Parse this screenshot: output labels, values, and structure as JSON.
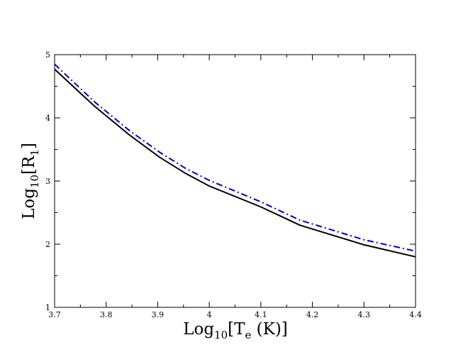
{
  "chart_data": {
    "type": "line",
    "xlabel": {
      "main": "Log",
      "sub1": "10",
      "mid": "[T",
      "sub2": "e",
      "tail": " (K)]"
    },
    "ylabel": {
      "main": "Log",
      "sub1": "10",
      "mid": "[R",
      "sub2": "1",
      "tail": "]"
    },
    "xlim": [
      3.7,
      4.4
    ],
    "ylim": [
      1,
      5
    ],
    "xticks": [
      3.7,
      3.8,
      3.9,
      4.0,
      4.1,
      4.2,
      4.3,
      4.4
    ],
    "xtick_labels": [
      "3.7",
      "3.8",
      "3.9",
      "4",
      "4.1",
      "4.2",
      "4.3",
      "4.4"
    ],
    "yticks": [
      1,
      2,
      3,
      4,
      5
    ],
    "ytick_labels": [
      "1",
      "2",
      "3",
      "4",
      "5"
    ],
    "grid": false,
    "series": [
      {
        "color": "#000000",
        "style": "solid",
        "x": [
          3.7,
          3.778,
          3.845,
          3.903,
          3.954,
          4.0,
          4.1,
          4.176,
          4.3,
          4.4
        ],
        "y": [
          4.77,
          4.18,
          3.73,
          3.38,
          3.12,
          2.92,
          2.59,
          2.3,
          1.99,
          1.8
        ]
      },
      {
        "color": "#0000cc",
        "style": "dashdot",
        "x": [
          3.7,
          3.778,
          3.845,
          3.903,
          3.954,
          4.0,
          4.1,
          4.176,
          4.3,
          4.4
        ],
        "y": [
          4.85,
          4.25,
          3.8,
          3.46,
          3.2,
          3.01,
          2.67,
          2.38,
          2.07,
          1.89
        ]
      }
    ]
  }
}
